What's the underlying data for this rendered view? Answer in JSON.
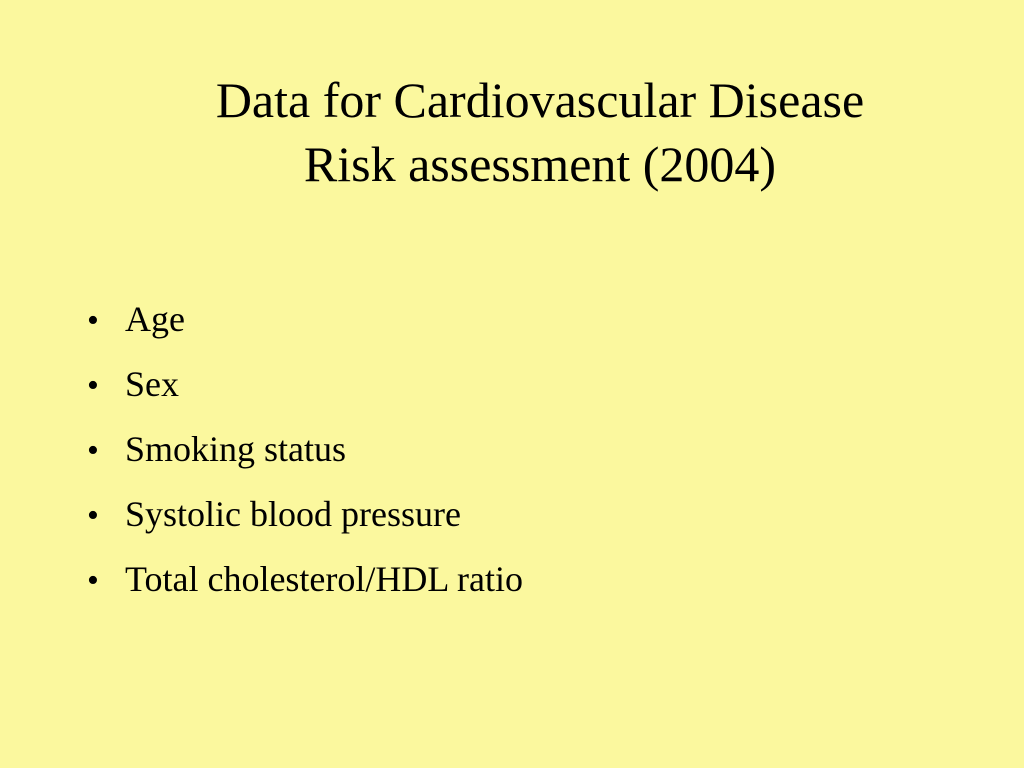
{
  "slide": {
    "title_line1": "Data for Cardiovascular Disease",
    "title_line2": "Risk assessment (2004)",
    "bullet_symbol": "•",
    "items": [
      {
        "label": "Age"
      },
      {
        "label": "Sex"
      },
      {
        "label": "Smoking status"
      },
      {
        "label": "Systolic blood pressure"
      },
      {
        "label": "Total cholesterol/HDL ratio"
      }
    ],
    "background_color": "#FBF89E",
    "text_color": "#000000"
  }
}
